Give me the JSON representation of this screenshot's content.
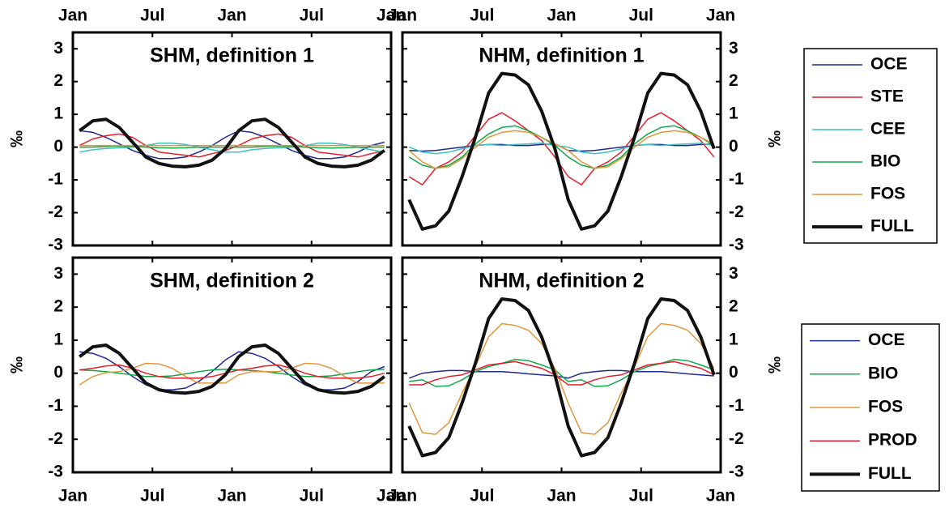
{
  "chart_data": [
    {
      "type": "line",
      "title": "SHM, definition 1",
      "ylabel": "‰",
      "x": [
        0.5,
        1.5,
        2.5,
        3.5,
        4.5,
        5.5,
        6.5,
        7.5,
        8.5,
        9.5,
        10.5,
        11.5,
        12.5,
        13.5,
        14.5,
        15.5,
        16.5,
        17.5,
        18.5,
        19.5,
        20.5,
        21.5,
        22.5,
        23.5
      ],
      "xlim": [
        0,
        24
      ],
      "xticks": [
        {
          "value": 0,
          "label": "Jan"
        },
        {
          "value": 6,
          "label": "Jul"
        },
        {
          "value": 12,
          "label": "Jan"
        },
        {
          "value": 18,
          "label": "Jul"
        },
        {
          "value": 24,
          "label": "Jan"
        }
      ],
      "ylim": [
        -3,
        3.5
      ],
      "yticks": [
        -3,
        -2,
        -1,
        0,
        1,
        2,
        3
      ],
      "series": [
        {
          "color": "#1f2a8f",
          "width": 1.5,
          "values": [
            0.5,
            0.45,
            0.3,
            0.1,
            -0.1,
            -0.25,
            -0.35,
            -0.35,
            -0.3,
            -0.15,
            0.05,
            0.3,
            0.5,
            0.45,
            0.3,
            0.1,
            -0.1,
            -0.25,
            -0.35,
            -0.35,
            -0.3,
            -0.15,
            0.05,
            0.15
          ]
        },
        {
          "color": "#e0202a",
          "width": 1.5,
          "values": [
            0.05,
            0.25,
            0.35,
            0.4,
            0.3,
            0.05,
            -0.15,
            -0.2,
            -0.25,
            -0.3,
            -0.2,
            -0.1,
            0.05,
            0.25,
            0.35,
            0.4,
            0.3,
            0.05,
            -0.15,
            -0.2,
            -0.25,
            -0.3,
            -0.2,
            -0.1
          ]
        },
        {
          "color": "#3cc0c0",
          "width": 1.5,
          "values": [
            -0.15,
            -0.08,
            -0.04,
            -0.02,
            0,
            0.05,
            0.12,
            0.12,
            0.08,
            0,
            -0.08,
            -0.15,
            -0.15,
            -0.08,
            -0.04,
            -0.02,
            0,
            0.05,
            0.12,
            0.12,
            0.08,
            0,
            -0.08,
            -0.15
          ]
        },
        {
          "color": "#12a84a",
          "width": 1.5,
          "values": [
            0,
            0,
            0.02,
            0.03,
            0.02,
            0,
            -0.02,
            -0.03,
            -0.02,
            0,
            0,
            0,
            0,
            0,
            0.02,
            0.03,
            0.02,
            0,
            -0.02,
            -0.03,
            -0.02,
            0,
            0,
            0
          ]
        },
        {
          "color": "#e0963c",
          "width": 1.5,
          "values": [
            0.05,
            0.05,
            0.05,
            0.05,
            0.05,
            0.05,
            0.05,
            0.05,
            0.05,
            0.05,
            0.05,
            0.05,
            0.05,
            0.05,
            0.05,
            0.05,
            0.05,
            0.05,
            0.05,
            0.05,
            0.05,
            0.05,
            0.05,
            0.05
          ]
        },
        {
          "color": "#111111",
          "width": 4,
          "values": [
            0.5,
            0.8,
            0.85,
            0.6,
            0.15,
            -0.3,
            -0.5,
            -0.58,
            -0.6,
            -0.55,
            -0.4,
            -0.05,
            0.5,
            0.8,
            0.85,
            0.6,
            0.15,
            -0.3,
            -0.5,
            -0.58,
            -0.6,
            -0.55,
            -0.4,
            -0.1
          ]
        }
      ]
    },
    {
      "type": "line",
      "title": "NHM, definition 1",
      "ylabel": "‰",
      "legend": "right",
      "x": [
        0.5,
        1.5,
        2.5,
        3.5,
        4.5,
        5.5,
        6.5,
        7.5,
        8.5,
        9.5,
        10.5,
        11.5,
        12.5,
        13.5,
        14.5,
        15.5,
        16.5,
        17.5,
        18.5,
        19.5,
        20.5,
        21.5,
        22.5,
        23.5
      ],
      "xlim": [
        0,
        24
      ],
      "xticks": [
        {
          "value": 0,
          "label": "Jan"
        },
        {
          "value": 6,
          "label": "Jul"
        },
        {
          "value": 12,
          "label": "Jan"
        },
        {
          "value": 18,
          "label": "Jul"
        },
        {
          "value": 24,
          "label": "Jan"
        }
      ],
      "ylim": [
        -3,
        3.5
      ],
      "yticks": [
        -3,
        -2,
        -1,
        0,
        1,
        2,
        3
      ],
      "series": [
        {
          "name": "OCE",
          "color": "#1f2a8f",
          "width": 1.5,
          "values": [
            -0.1,
            -0.12,
            -0.1,
            -0.05,
            0,
            0.05,
            0.08,
            0.08,
            0.05,
            0.05,
            0.08,
            0.1,
            -0.1,
            -0.12,
            -0.1,
            -0.05,
            0,
            0.05,
            0.08,
            0.08,
            0.05,
            0.05,
            0.08,
            0.1
          ]
        },
        {
          "name": "STE",
          "color": "#e0202a",
          "width": 1.5,
          "values": [
            -0.9,
            -1.15,
            -0.65,
            -0.45,
            -0.15,
            0.35,
            0.85,
            1.05,
            0.8,
            0.5,
            0.2,
            -0.3,
            -0.9,
            -1.15,
            -0.65,
            -0.45,
            -0.15,
            0.35,
            0.85,
            1.05,
            0.8,
            0.5,
            0.2,
            -0.3
          ]
        },
        {
          "name": "CEE",
          "color": "#3cc0c0",
          "width": 1.5,
          "values": [
            0,
            -0.15,
            -0.2,
            -0.15,
            -0.05,
            0.05,
            0.08,
            0.05,
            0.08,
            0.1,
            0.12,
            0.05,
            0,
            -0.15,
            -0.2,
            -0.15,
            -0.05,
            0.05,
            0.08,
            0.05,
            0.08,
            0.1,
            0.12,
            0.05
          ]
        },
        {
          "name": "BIO",
          "color": "#12a84a",
          "width": 1.5,
          "values": [
            -0.3,
            -0.55,
            -0.65,
            -0.55,
            -0.3,
            0.1,
            0.4,
            0.6,
            0.65,
            0.5,
            0.3,
            0.05,
            -0.3,
            -0.55,
            -0.65,
            -0.55,
            -0.3,
            0.1,
            0.4,
            0.6,
            0.65,
            0.5,
            0.3,
            0.05
          ]
        },
        {
          "name": "FOS",
          "color": "#e0963c",
          "width": 1.5,
          "values": [
            -0.1,
            -0.45,
            -0.65,
            -0.6,
            -0.35,
            0,
            0.3,
            0.45,
            0.5,
            0.45,
            0.3,
            0.1,
            -0.1,
            -0.45,
            -0.65,
            -0.6,
            -0.35,
            0,
            0.3,
            0.45,
            0.5,
            0.45,
            0.3,
            0.1
          ]
        },
        {
          "name": "FULL",
          "color": "#111111",
          "width": 4,
          "values": [
            -1.6,
            -2.5,
            -2.4,
            -1.95,
            -0.9,
            0.3,
            1.65,
            2.25,
            2.2,
            1.9,
            1.1,
            -0.05,
            -1.6,
            -2.5,
            -2.4,
            -1.95,
            -0.9,
            0.3,
            1.65,
            2.25,
            2.2,
            1.9,
            1.1,
            -0.05
          ]
        }
      ]
    },
    {
      "type": "line",
      "title": "SHM, definition 2",
      "ylabel": "‰",
      "x": [
        0.5,
        1.5,
        2.5,
        3.5,
        4.5,
        5.5,
        6.5,
        7.5,
        8.5,
        9.5,
        10.5,
        11.5,
        12.5,
        13.5,
        14.5,
        15.5,
        16.5,
        17.5,
        18.5,
        19.5,
        20.5,
        21.5,
        22.5,
        23.5
      ],
      "xlim": [
        0,
        24
      ],
      "xticks": [
        {
          "value": 0,
          "label": "Jan"
        },
        {
          "value": 6,
          "label": "Jul"
        },
        {
          "value": 12,
          "label": "Jan"
        },
        {
          "value": 18,
          "label": "Jul"
        },
        {
          "value": 24,
          "label": "Jan"
        }
      ],
      "ylim": [
        -3,
        3.5
      ],
      "yticks": [
        -3,
        -2,
        -1,
        0,
        1,
        2,
        3
      ],
      "series": [
        {
          "color": "#1f2a8f",
          "width": 1.5,
          "values": [
            0.65,
            0.6,
            0.45,
            0.2,
            -0.1,
            -0.35,
            -0.5,
            -0.5,
            -0.45,
            -0.25,
            0.05,
            0.4,
            0.65,
            0.6,
            0.45,
            0.2,
            -0.1,
            -0.35,
            -0.5,
            -0.5,
            -0.45,
            -0.25,
            0.05,
            0.2
          ]
        },
        {
          "color": "#12a84a",
          "width": 1.5,
          "values": [
            0.1,
            0.08,
            0.05,
            0,
            -0.05,
            -0.1,
            -0.1,
            -0.08,
            -0.02,
            0.05,
            0.1,
            0.12,
            0.1,
            0.08,
            0.05,
            0,
            -0.05,
            -0.1,
            -0.1,
            -0.08,
            -0.02,
            0.05,
            0.1,
            0.12
          ]
        },
        {
          "color": "#e0963c",
          "width": 1.5,
          "values": [
            -0.35,
            -0.1,
            0.02,
            0.05,
            0.15,
            0.3,
            0.28,
            0.15,
            -0.1,
            -0.3,
            -0.3,
            -0.3,
            -0.05,
            0.05,
            0.05,
            0.05,
            0.15,
            0.3,
            0.28,
            0.15,
            -0.1,
            -0.3,
            -0.3,
            -0.3
          ]
        },
        {
          "color": "#e0202a",
          "width": 1.5,
          "values": [
            0.1,
            0.15,
            0.22,
            0.25,
            0.15,
            0,
            -0.1,
            -0.15,
            -0.15,
            -0.15,
            -0.1,
            0,
            0.1,
            0.15,
            0.22,
            0.25,
            0.15,
            0,
            -0.1,
            -0.15,
            -0.15,
            -0.15,
            -0.1,
            0
          ]
        },
        {
          "color": "#111111",
          "width": 4,
          "values": [
            0.5,
            0.8,
            0.85,
            0.6,
            0.15,
            -0.3,
            -0.5,
            -0.58,
            -0.6,
            -0.55,
            -0.4,
            -0.05,
            0.5,
            0.8,
            0.85,
            0.6,
            0.15,
            -0.3,
            -0.5,
            -0.58,
            -0.6,
            -0.55,
            -0.4,
            -0.1
          ]
        }
      ]
    },
    {
      "type": "line",
      "title": "NHM, definition 2",
      "ylabel": "‰",
      "legend": "right",
      "x": [
        0.5,
        1.5,
        2.5,
        3.5,
        4.5,
        5.5,
        6.5,
        7.5,
        8.5,
        9.5,
        10.5,
        11.5,
        12.5,
        13.5,
        14.5,
        15.5,
        16.5,
        17.5,
        18.5,
        19.5,
        20.5,
        21.5,
        22.5,
        23.5
      ],
      "xlim": [
        0,
        24
      ],
      "xticks": [
        {
          "value": 0,
          "label": "Jan"
        },
        {
          "value": 6,
          "label": "Jul"
        },
        {
          "value": 12,
          "label": "Jan"
        },
        {
          "value": 18,
          "label": "Jul"
        },
        {
          "value": 24,
          "label": "Jan"
        }
      ],
      "ylim": [
        -3,
        3.5
      ],
      "yticks": [
        -3,
        -2,
        -1,
        0,
        1,
        2,
        3
      ],
      "series": [
        {
          "name": "OCE",
          "color": "#1f2a8f",
          "width": 1.5,
          "values": [
            -0.15,
            0,
            0.05,
            0.08,
            0.08,
            0.05,
            0.05,
            0.05,
            0.02,
            -0.02,
            -0.05,
            -0.08,
            -0.15,
            0,
            0.05,
            0.08,
            0.08,
            0.05,
            0.05,
            0.05,
            0.02,
            -0.02,
            -0.05,
            -0.08
          ]
        },
        {
          "name": "BIO",
          "color": "#12a84a",
          "width": 1.5,
          "values": [
            -0.25,
            -0.2,
            -0.4,
            -0.38,
            -0.2,
            0.05,
            0.2,
            0.3,
            0.42,
            0.38,
            0.25,
            0.1,
            -0.25,
            -0.2,
            -0.4,
            -0.38,
            -0.2,
            0.05,
            0.2,
            0.3,
            0.42,
            0.38,
            0.25,
            0.1
          ]
        },
        {
          "name": "FOS",
          "color": "#e0963c",
          "width": 1.5,
          "values": [
            -0.9,
            -1.8,
            -1.85,
            -1.5,
            -0.6,
            0.2,
            1.1,
            1.5,
            1.45,
            1.3,
            0.9,
            0.15,
            -0.9,
            -1.8,
            -1.85,
            -1.5,
            -0.6,
            0.2,
            1.1,
            1.5,
            1.45,
            1.3,
            0.9,
            0.15
          ]
        },
        {
          "name": "PROD",
          "color": "#e0202a",
          "width": 1.5,
          "values": [
            -0.35,
            -0.35,
            -0.2,
            -0.1,
            -0.05,
            0.1,
            0.25,
            0.3,
            0.35,
            0.25,
            0.15,
            -0.05,
            -0.35,
            -0.35,
            -0.2,
            -0.1,
            -0.05,
            0.1,
            0.25,
            0.3,
            0.35,
            0.25,
            0.15,
            -0.05
          ]
        },
        {
          "name": "FULL",
          "color": "#111111",
          "width": 4,
          "values": [
            -1.6,
            -2.5,
            -2.4,
            -1.95,
            -0.9,
            0.3,
            1.65,
            2.25,
            2.2,
            1.9,
            1.1,
            -0.05,
            -1.6,
            -2.5,
            -2.4,
            -1.95,
            -0.9,
            0.3,
            1.65,
            2.25,
            2.2,
            1.9,
            1.1,
            -0.05
          ]
        }
      ]
    }
  ]
}
